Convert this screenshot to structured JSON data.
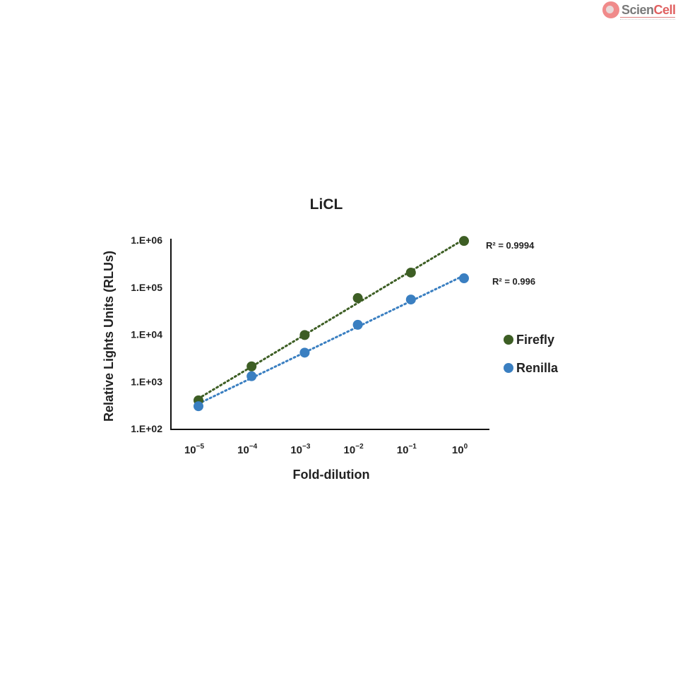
{
  "logo": {
    "text_main": "Scien",
    "text_accent": "Cell",
    "icon": "sciencell-logo-icon"
  },
  "chart_data": {
    "type": "scatter",
    "title": "LiCL",
    "xlabel": "Fold-dilution",
    "ylabel": "Relative Lights Units (RLUs)",
    "x_scale": "log",
    "y_scale": "log",
    "categories": [
      "10^-5",
      "10^-4",
      "10^-3",
      "10^-2",
      "10^-1",
      "10^0"
    ],
    "x_tick_labels": [
      {
        "base": "10",
        "exp": "−5"
      },
      {
        "base": "10",
        "exp": "−4"
      },
      {
        "base": "10",
        "exp": "−3"
      },
      {
        "base": "10",
        "exp": "−2"
      },
      {
        "base": "10",
        "exp": "−1"
      },
      {
        "base": "10",
        "exp": "0"
      }
    ],
    "y_tick_labels": [
      "1.E+02",
      "1.E+03",
      "1.E+04",
      "1.E+05",
      "1.E+06"
    ],
    "ylim": [
      100,
      1000000
    ],
    "grid": false,
    "legend_position": "right",
    "series": [
      {
        "name": "Firefly",
        "color": "#3d5e24",
        "trendline": "dotted",
        "r_squared_label": "R² = 0.9994",
        "values": [
          400,
          2100,
          9700,
          59000,
          205000,
          960000
        ]
      },
      {
        "name": "Renilla",
        "color": "#3a7fc1",
        "trendline": "dotted",
        "r_squared_label": "R² = 0.996",
        "values": [
          300,
          1300,
          4100,
          16000,
          55000,
          155000
        ]
      }
    ]
  }
}
